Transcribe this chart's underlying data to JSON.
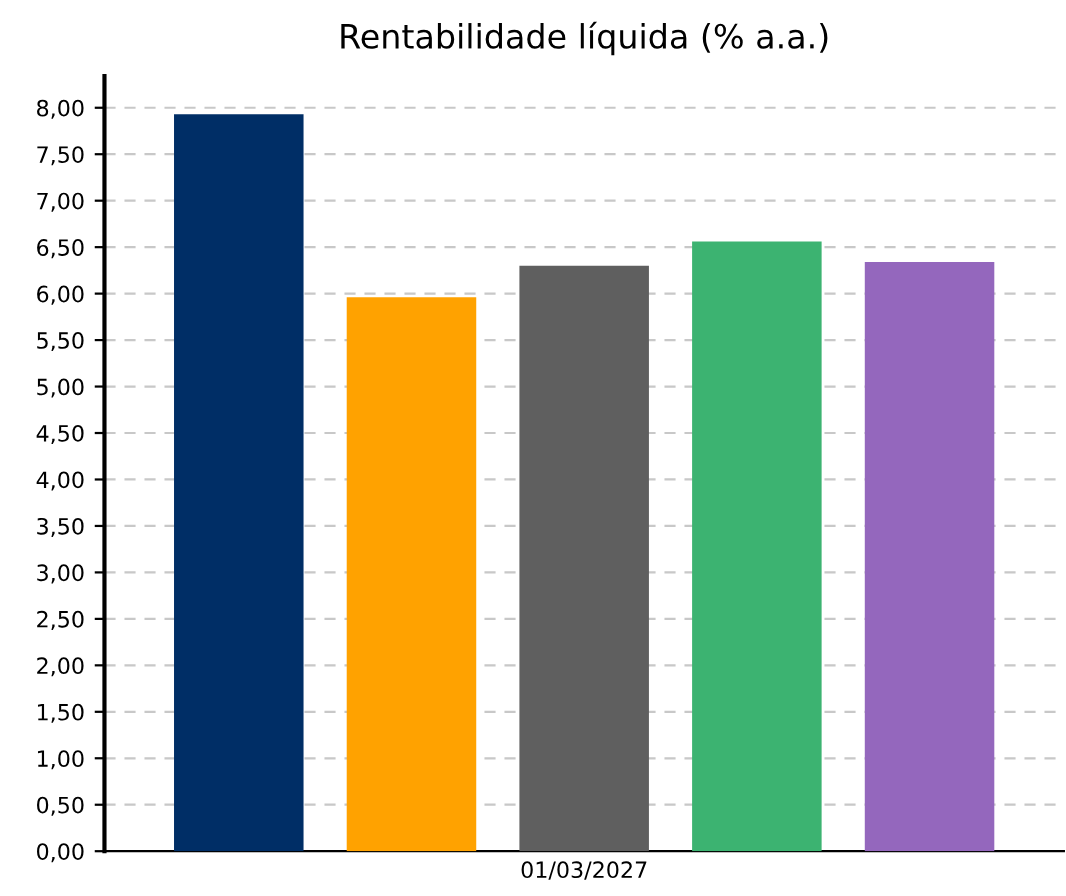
{
  "chart_data": {
    "type": "bar",
    "title": "Rentabilidade líquida (% a.a.)",
    "categories": [
      "01/03/2027"
    ],
    "series": [
      {
        "color": "#002e66",
        "values": [
          7.93
        ]
      },
      {
        "color": "#ffa200",
        "values": [
          5.96
        ]
      },
      {
        "color": "#5f5f5f",
        "values": [
          6.3
        ]
      },
      {
        "color": "#3cb371",
        "values": [
          6.56
        ]
      },
      {
        "color": "#9467bd",
        "values": [
          6.34
        ]
      }
    ],
    "ylim": [
      0,
      8.34
    ],
    "yticks": [
      {
        "value": 0,
        "label": "0,00"
      },
      {
        "value": 0.5,
        "label": "0,50"
      },
      {
        "value": 1,
        "label": "1,00"
      },
      {
        "value": 1.5,
        "label": "1,50"
      },
      {
        "value": 2,
        "label": "2,00"
      },
      {
        "value": 2.5,
        "label": "2,50"
      },
      {
        "value": 3,
        "label": "3,00"
      },
      {
        "value": 3.5,
        "label": "3,50"
      },
      {
        "value": 4,
        "label": "4,00"
      },
      {
        "value": 4.5,
        "label": "4,50"
      },
      {
        "value": 5,
        "label": "5,00"
      },
      {
        "value": 5.5,
        "label": "5,50"
      },
      {
        "value": 6,
        "label": "6,00"
      },
      {
        "value": 6.5,
        "label": "6,50"
      },
      {
        "value": 7,
        "label": "7,00"
      },
      {
        "value": 7.5,
        "label": "7,50"
      },
      {
        "value": 8,
        "label": "8,00"
      }
    ],
    "grid": "y"
  }
}
